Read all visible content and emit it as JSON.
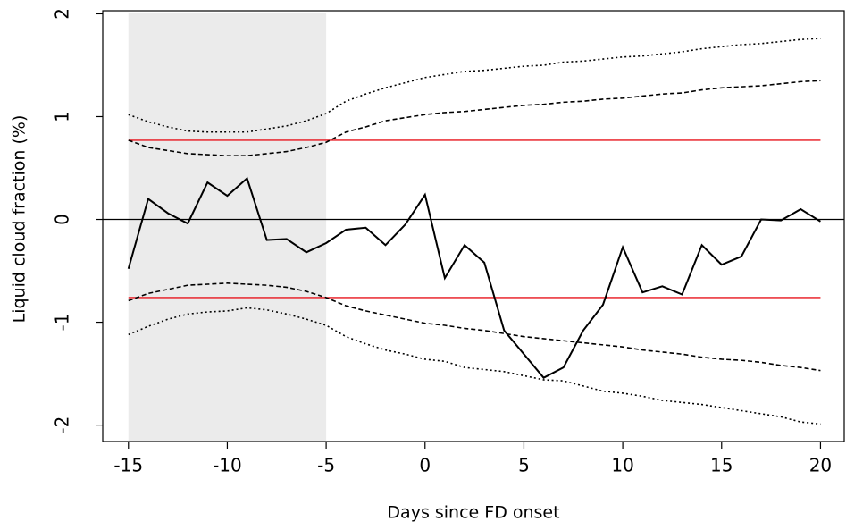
{
  "chart_data": {
    "type": "line",
    "xlabel": "Days since FD onset",
    "ylabel": "Liquid cloud fraction (%)",
    "x": [
      -15,
      -14,
      -13,
      -12,
      -11,
      -10,
      -9,
      -8,
      -7,
      -6,
      -5,
      -4,
      -3,
      -2,
      -1,
      0,
      1,
      2,
      3,
      4,
      5,
      6,
      7,
      8,
      9,
      10,
      11,
      12,
      13,
      14,
      15,
      16,
      17,
      18,
      19,
      20
    ],
    "series": [
      {
        "color": "#000000",
        "dash": "solid",
        "values": [
          -0.48,
          0.2,
          0.06,
          -0.04,
          0.36,
          0.23,
          0.4,
          -0.2,
          -0.19,
          -0.32,
          -0.23,
          -0.1,
          -0.08,
          -0.25,
          -0.05,
          0.24,
          -0.57,
          -0.25,
          -0.42,
          -1.08,
          -1.31,
          -1.54,
          -1.44,
          -1.08,
          -0.83,
          -0.27,
          -0.71,
          -0.65,
          -0.73,
          -0.25,
          -0.44,
          -0.36,
          0.0,
          -0.01,
          0.1,
          -0.02
        ]
      },
      {
        "color": "#000000",
        "dash": "dashed",
        "values": [
          0.77,
          0.7,
          0.67,
          0.64,
          0.63,
          0.62,
          0.62,
          0.64,
          0.66,
          0.7,
          0.75,
          0.85,
          0.9,
          0.96,
          0.99,
          1.02,
          1.04,
          1.05,
          1.07,
          1.09,
          1.11,
          1.12,
          1.14,
          1.15,
          1.17,
          1.18,
          1.2,
          1.22,
          1.23,
          1.26,
          1.28,
          1.29,
          1.3,
          1.32,
          1.34,
          1.35
        ]
      },
      {
        "color": "#000000",
        "dash": "dashed",
        "values": [
          -0.79,
          -0.72,
          -0.68,
          -0.64,
          -0.63,
          -0.62,
          -0.63,
          -0.64,
          -0.66,
          -0.7,
          -0.76,
          -0.84,
          -0.89,
          -0.93,
          -0.97,
          -1.01,
          -1.03,
          -1.06,
          -1.08,
          -1.11,
          -1.14,
          -1.16,
          -1.18,
          -1.2,
          -1.22,
          -1.24,
          -1.27,
          -1.29,
          -1.31,
          -1.34,
          -1.36,
          -1.37,
          -1.39,
          -1.42,
          -1.44,
          -1.47
        ]
      },
      {
        "color": "#000000",
        "dash": "dotted",
        "values": [
          1.02,
          0.95,
          0.9,
          0.86,
          0.85,
          0.85,
          0.85,
          0.88,
          0.91,
          0.96,
          1.03,
          1.15,
          1.22,
          1.28,
          1.33,
          1.38,
          1.41,
          1.44,
          1.45,
          1.47,
          1.49,
          1.5,
          1.53,
          1.54,
          1.56,
          1.58,
          1.59,
          1.61,
          1.63,
          1.66,
          1.68,
          1.7,
          1.71,
          1.73,
          1.75,
          1.76
        ]
      },
      {
        "color": "#000000",
        "dash": "dotted",
        "values": [
          -1.12,
          -1.04,
          -0.97,
          -0.92,
          -0.9,
          -0.89,
          -0.86,
          -0.88,
          -0.92,
          -0.97,
          -1.03,
          -1.14,
          -1.21,
          -1.27,
          -1.31,
          -1.36,
          -1.38,
          -1.44,
          -1.46,
          -1.48,
          -1.52,
          -1.56,
          -1.57,
          -1.62,
          -1.67,
          -1.69,
          -1.72,
          -1.76,
          -1.78,
          -1.8,
          -1.83,
          -1.86,
          -1.89,
          -1.92,
          -1.97,
          -1.99
        ]
      }
    ],
    "hlines": [
      {
        "value": 0.77,
        "color": "#e8141c",
        "span": "data"
      },
      {
        "value": -0.76,
        "color": "#e8141c",
        "span": "data"
      },
      {
        "value": 0,
        "color": "#000000",
        "span": "full"
      }
    ],
    "shade": [
      -15,
      -5
    ],
    "shade_color": "#ebebeb",
    "xlim": [
      -16.3,
      21.2
    ],
    "ylim": [
      -2.16,
      2.03
    ],
    "xticks": [
      -15,
      -10,
      -5,
      0,
      5,
      10,
      15,
      20
    ],
    "yticks": [
      -2,
      -1,
      0,
      1,
      2
    ]
  }
}
